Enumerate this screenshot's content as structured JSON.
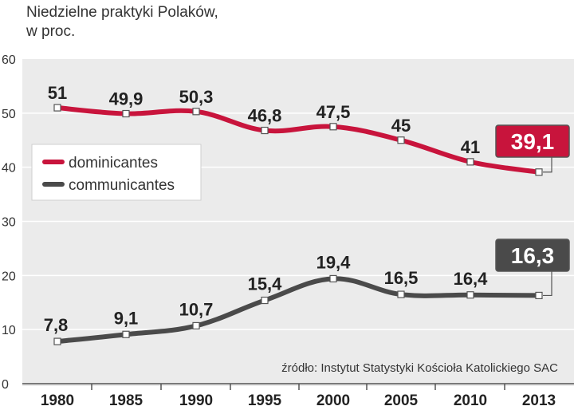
{
  "chart_data": {
    "type": "line",
    "title_lines": [
      "Niedzielne praktyki Polaków,",
      "w proc."
    ],
    "x": [
      "1980",
      "1985",
      "1990",
      "1995",
      "2000",
      "2005",
      "2010",
      "2013"
    ],
    "ylim": [
      0,
      60
    ],
    "yticks": [
      "0",
      "10",
      "20",
      "30",
      "40",
      "50",
      "60"
    ],
    "grid": true,
    "legend_position": "left",
    "series": [
      {
        "name": "dominicantes",
        "values": [
          51,
          49.9,
          50.3,
          46.8,
          47.5,
          45,
          41,
          39.1
        ],
        "labels": [
          "51",
          "49,9",
          "50,3",
          "46,8",
          "47,5",
          "45",
          "41",
          "39,1"
        ],
        "color": "#c8143c"
      },
      {
        "name": "communicantes",
        "values": [
          7.8,
          9.1,
          10.7,
          15.4,
          19.4,
          16.5,
          16.4,
          16.3
        ],
        "labels": [
          "7,8",
          "9,1",
          "10,7",
          "15,4",
          "19,4",
          "16,5",
          "16,4",
          "16,3"
        ],
        "color": "#4a4a4a"
      }
    ],
    "source": "źródło: Instytut Statystyki Kościoła Katolickiego SAC"
  }
}
